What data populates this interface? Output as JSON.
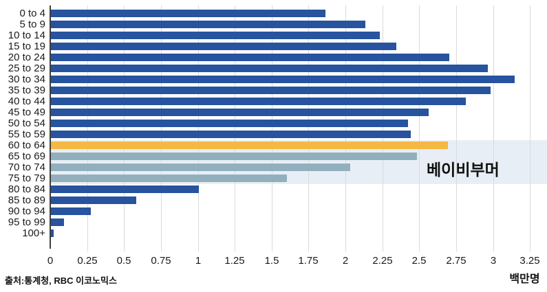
{
  "colors": {
    "blue": "#27539f",
    "orange": "#f5b843",
    "gray": "#92afbe",
    "band": "#e8eef5",
    "gridline": "#dadada",
    "axis": "#3d3d3d"
  },
  "chart_data": {
    "type": "bar",
    "orientation": "horizontal",
    "title": "",
    "xlabel": "백만명",
    "ylabel": "",
    "xlim": [
      0,
      3.25
    ],
    "grid": true,
    "categories": [
      "0 to 4",
      "5 to 9",
      "10 to 14",
      "15 to 19",
      "20 to 24",
      "25 to 29",
      "30 to 34",
      "35 to 39",
      "40 to 44",
      "45 to 49",
      "50 to 54",
      "55 to 59",
      "60 to 64",
      "65 to 69",
      "70 to 74",
      "75 to 79",
      "80 to 84",
      "85 to 89",
      "90 to 94",
      "95 to 99",
      "100+"
    ],
    "values": [
      1.86,
      2.13,
      2.23,
      2.34,
      2.7,
      2.96,
      3.14,
      2.98,
      2.81,
      2.56,
      2.42,
      2.44,
      2.69,
      2.48,
      2.03,
      1.6,
      1.0,
      0.58,
      0.27,
      0.09,
      0.02
    ],
    "color_keys": [
      "blue",
      "blue",
      "blue",
      "blue",
      "blue",
      "blue",
      "blue",
      "blue",
      "blue",
      "blue",
      "blue",
      "blue",
      "orange",
      "gray",
      "gray",
      "gray",
      "blue",
      "blue",
      "blue",
      "blue",
      "blue"
    ],
    "x_tick_labels": [
      "0",
      "0.25",
      "0.5",
      "0.75",
      "1",
      "1.25",
      "1.5",
      "1.75",
      "2",
      "2.25",
      "2.5",
      "2.75",
      "3",
      "3.25"
    ],
    "x_tick_values": [
      0,
      0.25,
      0.5,
      0.75,
      1,
      1.25,
      1.5,
      1.75,
      2,
      2.25,
      2.5,
      2.75,
      3,
      3.25
    ],
    "highlight": {
      "label": "베이비부머",
      "categories": [
        "60 to 64",
        "65 to 69",
        "70 to 74",
        "75 to 79"
      ],
      "start_index": 12,
      "row_span": 4
    },
    "source": "출처:통계청, RBC 이코노믹스"
  }
}
